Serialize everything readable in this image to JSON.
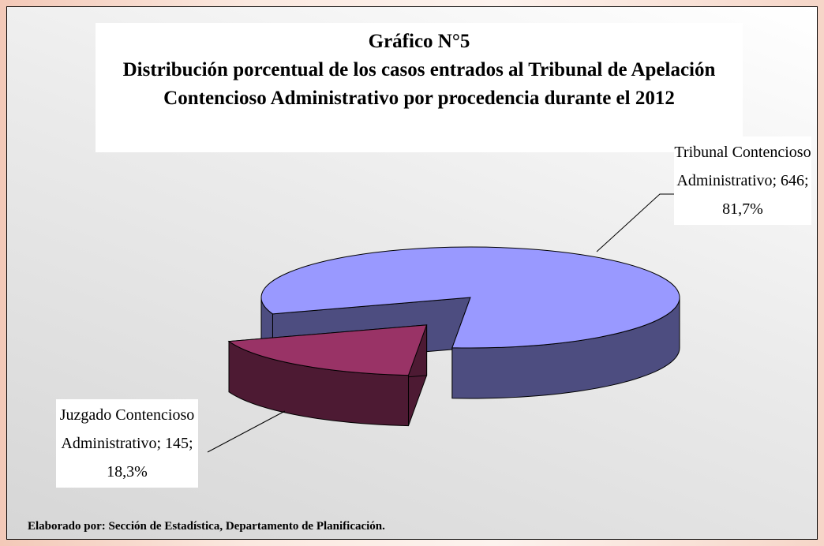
{
  "chart_data": {
    "type": "pie",
    "title": "Gráfico N°5",
    "subtitle": "Distribución porcentual de los casos entrados al Tribunal de Apelación Contencioso Administrativo por procedencia durante el 2012",
    "categories": [
      "Tribunal Contencioso Administrativo",
      "Juzgado Contencioso Administrativo"
    ],
    "values": [
      646,
      145
    ],
    "value_labels": [
      "Tribunal Contencioso Administrativo; 646; 81,7%",
      "Juzgado Contencioso Administrativo; 145; 18,3%"
    ],
    "colors": [
      "#9999ff",
      "#993366"
    ],
    "source": "Elaborado por: Sección de Estadística, Departamento de Planificación."
  }
}
